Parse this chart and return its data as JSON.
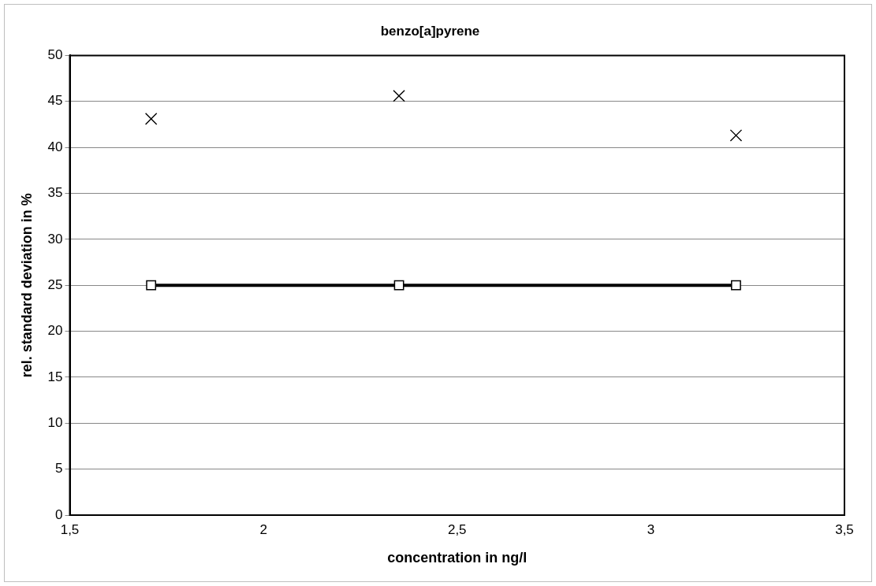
{
  "chart_data": {
    "type": "scatter",
    "title": "benzo[a]pyrene",
    "xlabel": "concentration in ng/l",
    "ylabel": "rel. standard deviation in %",
    "xlim": [
      1.5,
      3.5
    ],
    "xticks": [
      {
        "value": 1.5,
        "label": "1,5"
      },
      2,
      {
        "value": 2.5,
        "label": "2,5"
      },
      3,
      {
        "value": 3.5,
        "label": "3,5"
      }
    ],
    "ylim": [
      0,
      50
    ],
    "yticks": [
      0,
      5,
      10,
      15,
      20,
      25,
      30,
      35,
      40,
      45,
      50
    ],
    "grid": "y",
    "legend": false,
    "series": [
      {
        "type": "scatter",
        "marker": "cross",
        "color": "#000000",
        "x": [
          1.71,
          2.35,
          3.22
        ],
        "values": [
          43.1,
          45.6,
          41.3
        ]
      },
      {
        "type": "line",
        "marker": "square",
        "line_style": "solid",
        "color": "#000000",
        "x": [
          1.71,
          2.35,
          3.22
        ],
        "values": [
          25,
          25,
          25
        ]
      }
    ]
  }
}
